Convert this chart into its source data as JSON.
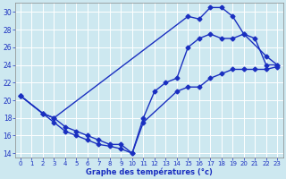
{
  "xlabel": "Graphe des températures (°c)",
  "bg_color": "#cde8f0",
  "grid_color": "#b0d4e0",
  "line_color": "#1a2fc0",
  "xlim": [
    -0.5,
    23.5
  ],
  "ylim": [
    13.5,
    31.0
  ],
  "xticks": [
    0,
    1,
    2,
    3,
    4,
    5,
    6,
    7,
    8,
    9,
    10,
    11,
    12,
    13,
    14,
    15,
    16,
    17,
    18,
    19,
    20,
    21,
    22,
    23
  ],
  "yticks": [
    14,
    16,
    18,
    20,
    22,
    24,
    26,
    28,
    30
  ],
  "line1_x": [
    0,
    2,
    3,
    15,
    16,
    17,
    18,
    19,
    20,
    22,
    23
  ],
  "line1_y": [
    20.5,
    18.5,
    18.0,
    29.5,
    29.2,
    30.5,
    30.5,
    29.5,
    27.5,
    25.0,
    24.0
  ],
  "line2_x": [
    0,
    2,
    3,
    4,
    5,
    6,
    7,
    8,
    9,
    10,
    11,
    14,
    15,
    16,
    17,
    18,
    19,
    20,
    21,
    22,
    23
  ],
  "line2_y": [
    20.5,
    18.5,
    18.0,
    17.0,
    16.5,
    16.0,
    15.5,
    15.0,
    15.0,
    14.0,
    17.5,
    21.0,
    21.5,
    21.5,
    22.5,
    23.0,
    23.5,
    23.5,
    23.5,
    23.5,
    23.8
  ],
  "line3_x": [
    0,
    2,
    3,
    4,
    5,
    6,
    7,
    8,
    9,
    10,
    11,
    12,
    13,
    14,
    15,
    16,
    17,
    18,
    19,
    20,
    21,
    22,
    23
  ],
  "line3_y": [
    20.5,
    18.5,
    17.5,
    16.5,
    16.0,
    15.5,
    15.0,
    14.8,
    14.5,
    14.0,
    18.0,
    21.0,
    22.0,
    22.5,
    26.0,
    27.0,
    27.5,
    27.0,
    27.0,
    27.5,
    27.0,
    24.0,
    24.0
  ]
}
